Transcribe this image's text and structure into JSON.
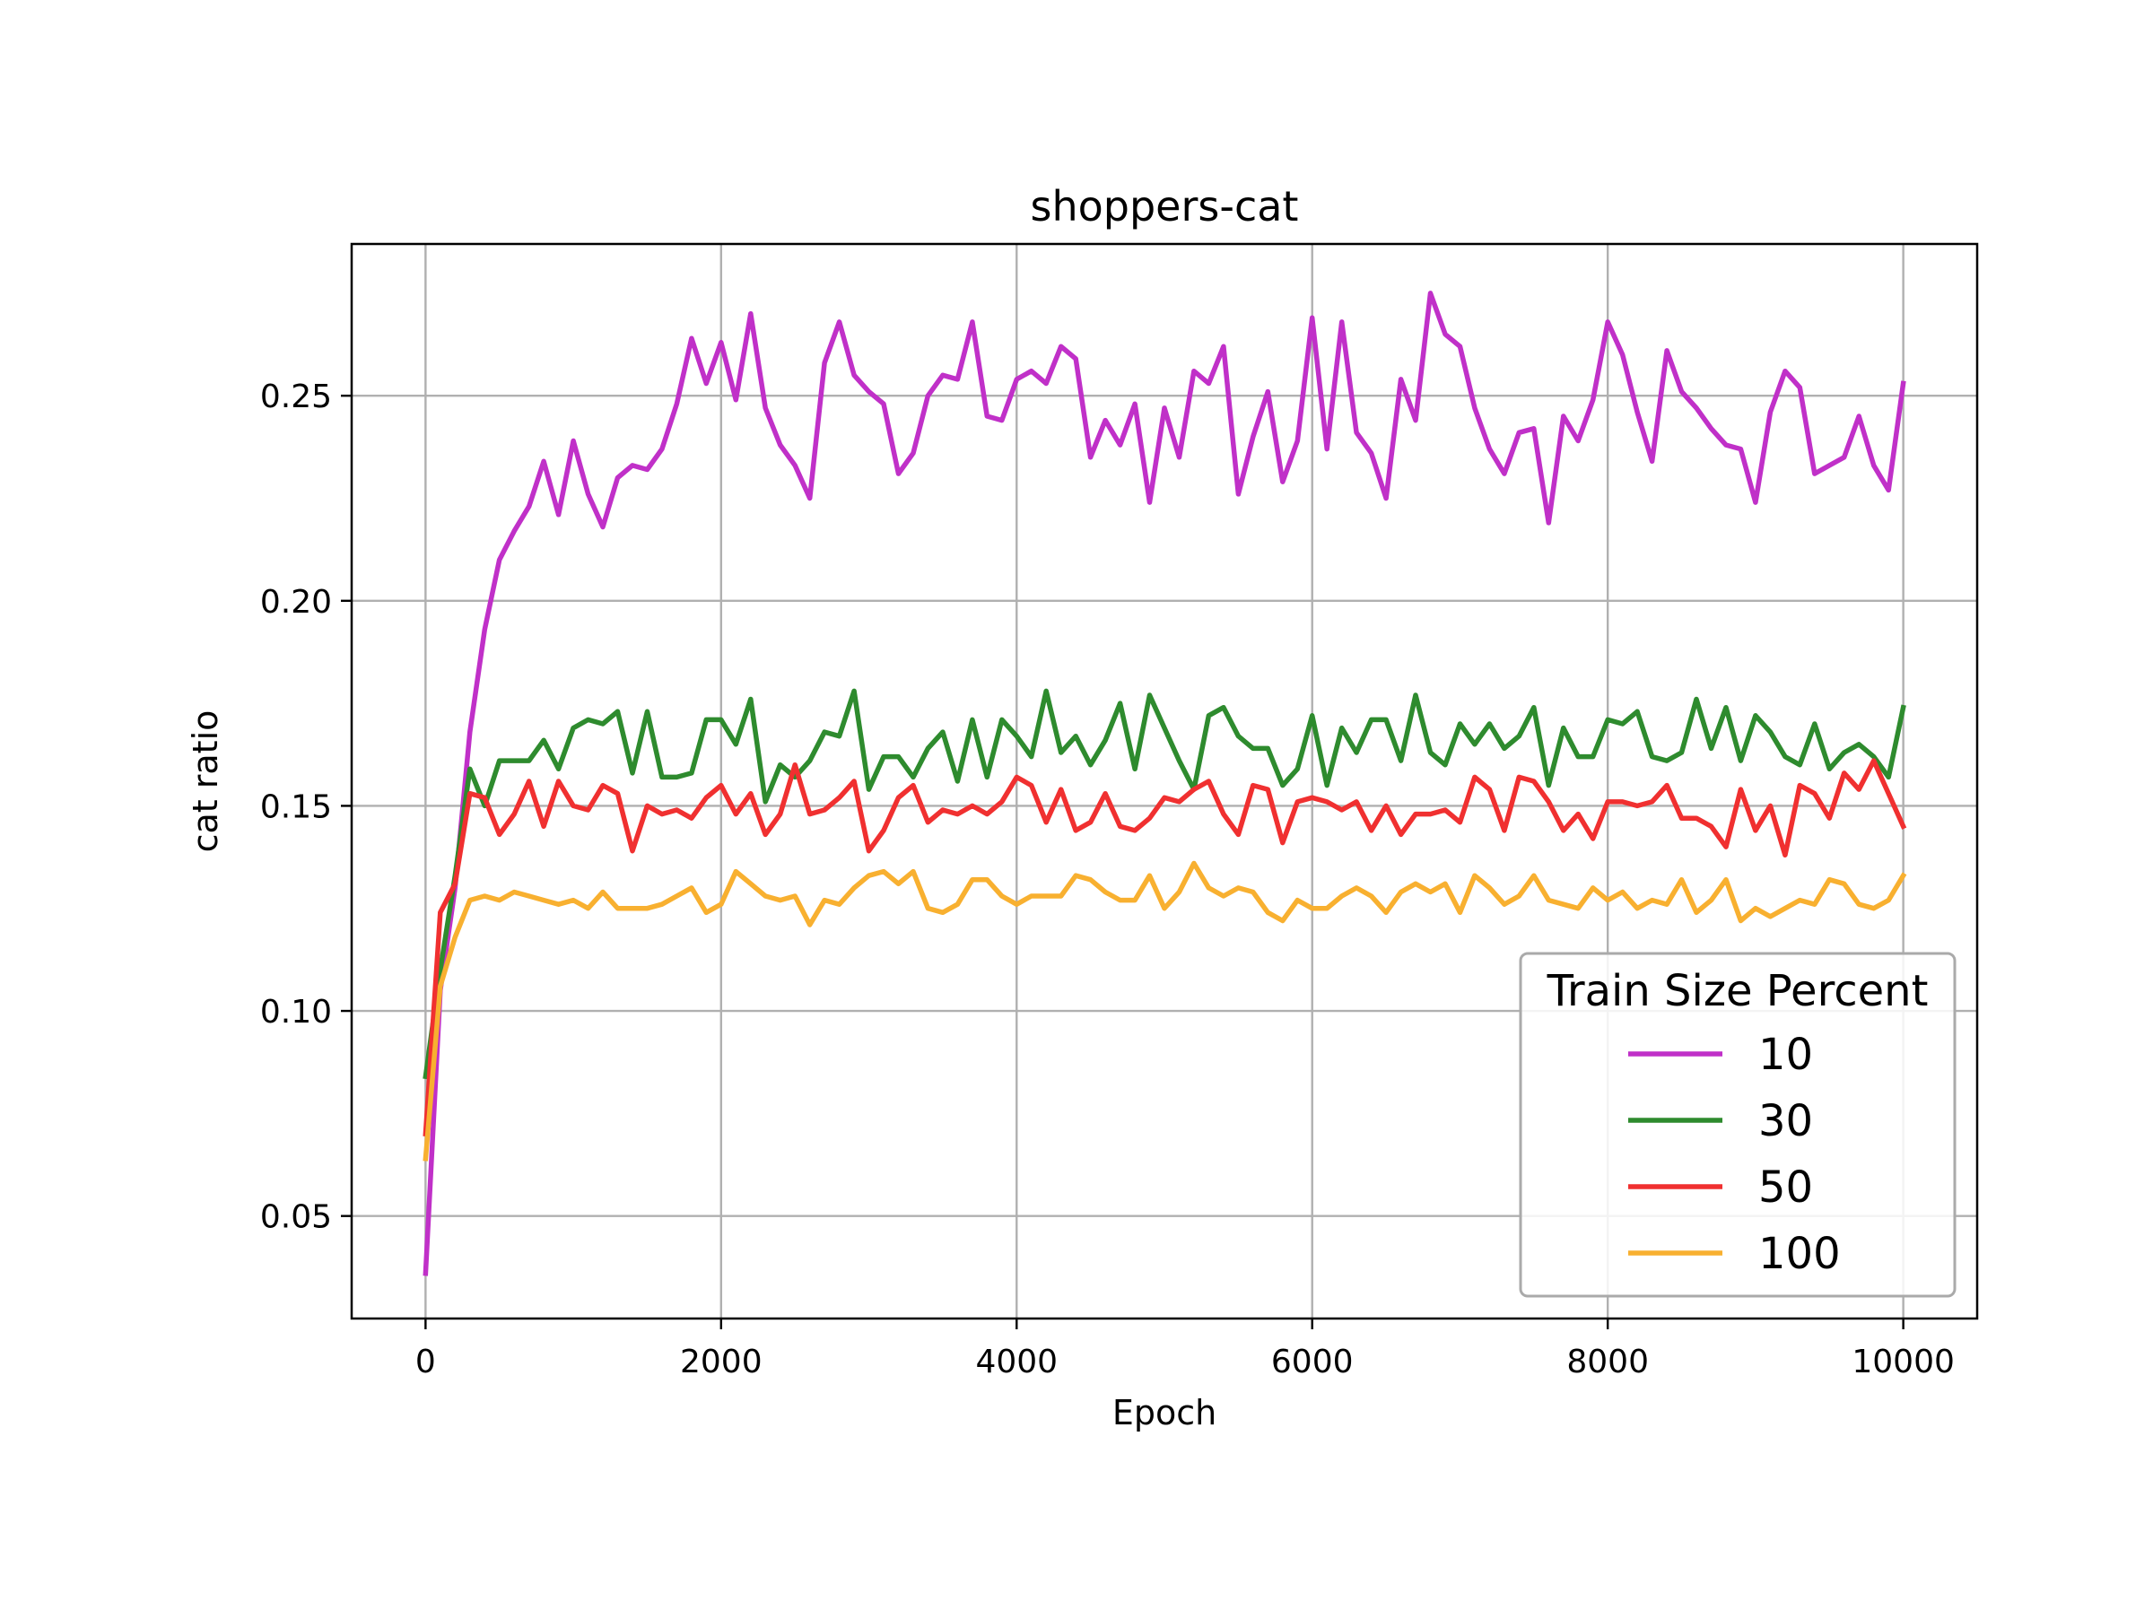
{
  "chart_data": {
    "type": "line",
    "title": "shoppers-cat",
    "xlabel": "Epoch",
    "ylabel": "cat ratio",
    "xlim": [
      -500,
      10500
    ],
    "ylim": [
      0.025,
      0.287
    ],
    "xticks": [
      0,
      2000,
      4000,
      6000,
      8000,
      10000
    ],
    "xtick_labels": [
      "0",
      "2000",
      "4000",
      "6000",
      "8000",
      "10000"
    ],
    "yticks": [
      0.05,
      0.1,
      0.15,
      0.2,
      0.25
    ],
    "ytick_labels": [
      "0.05",
      "0.10",
      "0.15",
      "0.20",
      "0.25"
    ],
    "grid": true,
    "legend": {
      "title": "Train Size Percent",
      "position": "lower-right"
    },
    "x_step": 100,
    "series": [
      {
        "name": "10",
        "color": "#c030c8",
        "values": [
          0.036,
          0.105,
          0.13,
          0.168,
          0.193,
          0.21,
          0.217,
          0.223,
          0.234,
          0.221,
          0.239,
          0.226,
          0.218,
          0.23,
          0.233,
          0.232,
          0.237,
          0.248,
          0.264,
          0.253,
          0.263,
          0.249,
          0.27,
          0.247,
          0.238,
          0.233,
          0.225,
          0.258,
          0.268,
          0.255,
          0.251,
          0.248,
          0.231,
          0.236,
          0.25,
          0.255,
          0.254,
          0.268,
          0.245,
          0.244,
          0.254,
          0.256,
          0.253,
          0.262,
          0.259,
          0.235,
          0.244,
          0.238,
          0.248,
          0.224,
          0.247,
          0.235,
          0.256,
          0.253,
          0.262,
          0.226,
          0.24,
          0.251,
          0.229,
          0.239,
          0.269,
          0.237,
          0.268,
          0.241,
          0.236,
          0.225,
          0.254,
          0.244,
          0.275,
          0.265,
          0.262,
          0.247,
          0.237,
          0.231,
          0.241,
          0.242,
          0.219,
          0.245,
          0.239,
          0.249,
          0.268,
          0.26,
          0.246,
          0.234,
          0.261,
          0.251,
          0.247,
          0.242,
          0.238,
          0.237,
          0.224,
          0.246,
          0.256,
          0.252,
          0.231,
          0.233,
          0.235,
          0.245,
          0.233,
          0.227,
          0.253
        ]
      },
      {
        "name": "30",
        "color": "#2e8b2e",
        "values": [
          0.084,
          0.11,
          0.133,
          0.159,
          0.15,
          0.161,
          0.161,
          0.161,
          0.166,
          0.159,
          0.169,
          0.171,
          0.17,
          0.173,
          0.158,
          0.173,
          0.157,
          0.157,
          0.158,
          0.171,
          0.171,
          0.165,
          0.176,
          0.151,
          0.16,
          0.157,
          0.161,
          0.168,
          0.167,
          0.178,
          0.154,
          0.162,
          0.162,
          0.157,
          0.164,
          0.168,
          0.156,
          0.171,
          0.157,
          0.171,
          0.167,
          0.162,
          0.178,
          0.163,
          0.167,
          0.16,
          0.166,
          0.175,
          0.159,
          0.177,
          0.169,
          0.161,
          0.154,
          0.172,
          0.174,
          0.167,
          0.164,
          0.164,
          0.155,
          0.159,
          0.172,
          0.155,
          0.169,
          0.163,
          0.171,
          0.171,
          0.161,
          0.177,
          0.163,
          0.16,
          0.17,
          0.165,
          0.17,
          0.164,
          0.167,
          0.174,
          0.155,
          0.169,
          0.162,
          0.162,
          0.171,
          0.17,
          0.173,
          0.162,
          0.161,
          0.163,
          0.176,
          0.164,
          0.174,
          0.161,
          0.172,
          0.168,
          0.162,
          0.16,
          0.17,
          0.159,
          0.163,
          0.165,
          0.162,
          0.157,
          0.174
        ]
      },
      {
        "name": "50",
        "color": "#f03030",
        "values": [
          0.07,
          0.124,
          0.131,
          0.153,
          0.152,
          0.143,
          0.148,
          0.156,
          0.145,
          0.156,
          0.15,
          0.149,
          0.155,
          0.153,
          0.139,
          0.15,
          0.148,
          0.149,
          0.147,
          0.152,
          0.155,
          0.148,
          0.153,
          0.143,
          0.148,
          0.16,
          0.148,
          0.149,
          0.152,
          0.156,
          0.139,
          0.144,
          0.152,
          0.155,
          0.146,
          0.149,
          0.148,
          0.15,
          0.148,
          0.151,
          0.157,
          0.155,
          0.146,
          0.154,
          0.144,
          0.146,
          0.153,
          0.145,
          0.144,
          0.147,
          0.152,
          0.151,
          0.154,
          0.156,
          0.148,
          0.143,
          0.155,
          0.154,
          0.141,
          0.151,
          0.152,
          0.151,
          0.149,
          0.151,
          0.144,
          0.15,
          0.143,
          0.148,
          0.148,
          0.149,
          0.146,
          0.157,
          0.154,
          0.144,
          0.157,
          0.156,
          0.151,
          0.144,
          0.148,
          0.142,
          0.151,
          0.151,
          0.15,
          0.151,
          0.155,
          0.147,
          0.147,
          0.145,
          0.14,
          0.154,
          0.144,
          0.15,
          0.138,
          0.155,
          0.153,
          0.147,
          0.158,
          0.154,
          0.161,
          0.153,
          0.145
        ]
      },
      {
        "name": "100",
        "color": "#f8b030",
        "values": [
          0.064,
          0.106,
          0.118,
          0.127,
          0.128,
          0.127,
          0.129,
          0.128,
          0.127,
          0.126,
          0.127,
          0.125,
          0.129,
          0.125,
          0.125,
          0.125,
          0.126,
          0.128,
          0.13,
          0.124,
          0.126,
          0.134,
          0.131,
          0.128,
          0.127,
          0.128,
          0.121,
          0.127,
          0.126,
          0.13,
          0.133,
          0.134,
          0.131,
          0.134,
          0.125,
          0.124,
          0.126,
          0.132,
          0.132,
          0.128,
          0.126,
          0.128,
          0.128,
          0.128,
          0.133,
          0.132,
          0.129,
          0.127,
          0.127,
          0.133,
          0.125,
          0.129,
          0.136,
          0.13,
          0.128,
          0.13,
          0.129,
          0.124,
          0.122,
          0.127,
          0.125,
          0.125,
          0.128,
          0.13,
          0.128,
          0.124,
          0.129,
          0.131,
          0.129,
          0.131,
          0.124,
          0.133,
          0.13,
          0.126,
          0.128,
          0.133,
          0.127,
          0.126,
          0.125,
          0.13,
          0.127,
          0.129,
          0.125,
          0.127,
          0.126,
          0.132,
          0.124,
          0.127,
          0.132,
          0.122,
          0.125,
          0.123,
          0.125,
          0.127,
          0.126,
          0.132,
          0.131,
          0.126,
          0.125,
          0.127,
          0.133
        ]
      }
    ]
  }
}
